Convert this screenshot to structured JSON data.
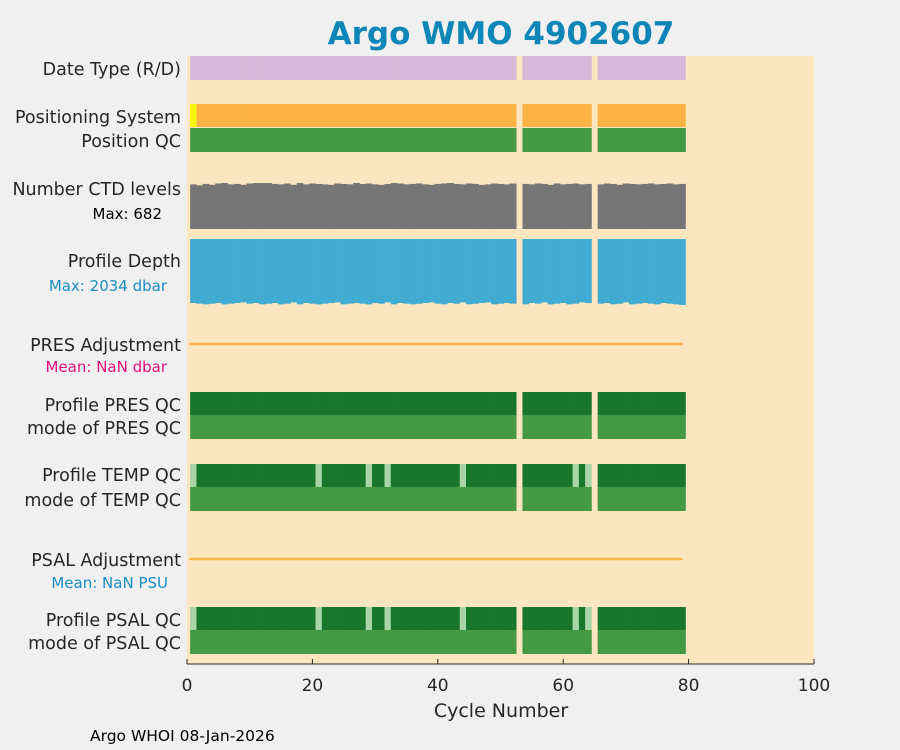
{
  "chart_data": {
    "type": "bar",
    "title": "Argo WMO 4902607",
    "xlabel": "Cycle Number",
    "xlim": [
      0,
      100
    ],
    "xticks": [
      "0",
      "20",
      "40",
      "60",
      "80",
      "100"
    ],
    "cycles": {
      "first": 1,
      "last": 79,
      "missing": [
        53,
        65
      ]
    },
    "rows": [
      {
        "key": "date_type",
        "label": "Date Type (R/D)",
        "color": "#d9b7d9",
        "segments": "full"
      },
      {
        "key": "positioning_system",
        "label": "Positioning System",
        "color": "#fbb444",
        "first_cycle_color": "#f7f70b",
        "segments": "full"
      },
      {
        "key": "position_qc",
        "label": "Position QC",
        "color": "#449944",
        "segments": "full"
      },
      {
        "key": "n_ctd_levels",
        "label": "Number CTD levels",
        "sublabel": "Max: 682",
        "sublabel_style": "black",
        "color": "#767676",
        "max": 682
      },
      {
        "key": "profile_depth",
        "label": "Profile Depth",
        "sublabel": "Max: 2034 dbar",
        "sublabel_style": "blue",
        "color": "#41abd1",
        "max": 2034
      },
      {
        "key": "pres_adjustment",
        "label": "PRES Adjustment",
        "sublabel": "Mean:  NaN dbar",
        "sublabel_style": "magenta",
        "color": "#f6b547"
      },
      {
        "key": "profile_pres_qc",
        "label": "Profile PRES QC",
        "color": "#18772a",
        "segments": "full"
      },
      {
        "key": "mode_pres_qc",
        "label": "mode of PRES QC",
        "color": "#449944",
        "segments": "full"
      },
      {
        "key": "profile_temp_qc",
        "label": "Profile TEMP QC",
        "color": "#18772a",
        "light_color": "#a9d6a9",
        "light_cycles": [
          1,
          21,
          29,
          32,
          44,
          62,
          64
        ]
      },
      {
        "key": "mode_temp_qc",
        "label": "mode of TEMP QC",
        "color": "#449944",
        "segments": "full"
      },
      {
        "key": "psal_adjustment",
        "label": "PSAL Adjustment",
        "sublabel": "Mean:  NaN PSU",
        "sublabel_style": "blue",
        "color": "#f6b547"
      },
      {
        "key": "profile_psal_qc",
        "label": "Profile PSAL QC",
        "color": "#18772a",
        "light_color": "#a9d6a9",
        "light_cycles": [
          1,
          21,
          29,
          32,
          44,
          62,
          64
        ]
      },
      {
        "key": "mode_psal_qc",
        "label": "mode of PSAL QC",
        "color": "#449944",
        "segments": "full"
      }
    ],
    "ctd_levels_profile": [
      0.97,
      0.95,
      0.98,
      0.96,
      0.99,
      1.0,
      0.97,
      0.98,
      0.96,
      0.99,
      1.0,
      1.0,
      1.0,
      0.98,
      0.97,
      0.99,
      0.96,
      1.0,
      0.97,
      0.99,
      0.98,
      0.97,
      0.96,
      0.99,
      0.98,
      0.97,
      1.0,
      0.98,
      0.99,
      0.97,
      0.96,
      0.98,
      1.0,
      0.99,
      0.97,
      0.98,
      0.99,
      0.97,
      0.96,
      0.98,
      0.99,
      1.0,
      0.98,
      0.97,
      0.99,
      0.98,
      0.96,
      0.97,
      0.99,
      0.98,
      0.97,
      0.99,
      0.0,
      0.98,
      0.97,
      0.99,
      0.98,
      0.96,
      0.99,
      0.97,
      0.98,
      0.99,
      0.97,
      0.98,
      0.0,
      0.97,
      0.99,
      0.98,
      0.96,
      0.99,
      0.98,
      0.97,
      0.98,
      0.99,
      0.97,
      0.98,
      0.99,
      0.97,
      0.98
    ],
    "profile_depth_profile": [
      0.97,
      0.98,
      0.99,
      0.98,
      0.97,
      0.99,
      0.98,
      0.97,
      0.96,
      0.98,
      0.97,
      0.99,
      0.98,
      0.97,
      0.99,
      0.98,
      0.96,
      0.99,
      0.97,
      0.98,
      0.99,
      0.98,
      0.97,
      0.96,
      0.99,
      0.98,
      0.97,
      0.98,
      0.99,
      0.97,
      0.98,
      0.96,
      0.99,
      0.97,
      0.98,
      0.99,
      0.98,
      0.97,
      0.96,
      0.98,
      0.99,
      0.97,
      0.98,
      0.96,
      0.99,
      0.98,
      0.97,
      0.96,
      0.99,
      0.98,
      0.97,
      0.98,
      0.0,
      0.99,
      0.97,
      0.98,
      0.96,
      0.99,
      0.98,
      0.97,
      0.99,
      0.98,
      0.96,
      0.97,
      0.0,
      0.98,
      0.97,
      0.99,
      0.98,
      0.96,
      0.99,
      0.98,
      0.97,
      0.98,
      0.99,
      0.97,
      0.98,
      0.99,
      1.0
    ],
    "footer": "Argo WHOI 08-Jan-2026"
  },
  "colors": {
    "page_background": "#f0f0f0",
    "plot_background": "#fce6bf"
  }
}
